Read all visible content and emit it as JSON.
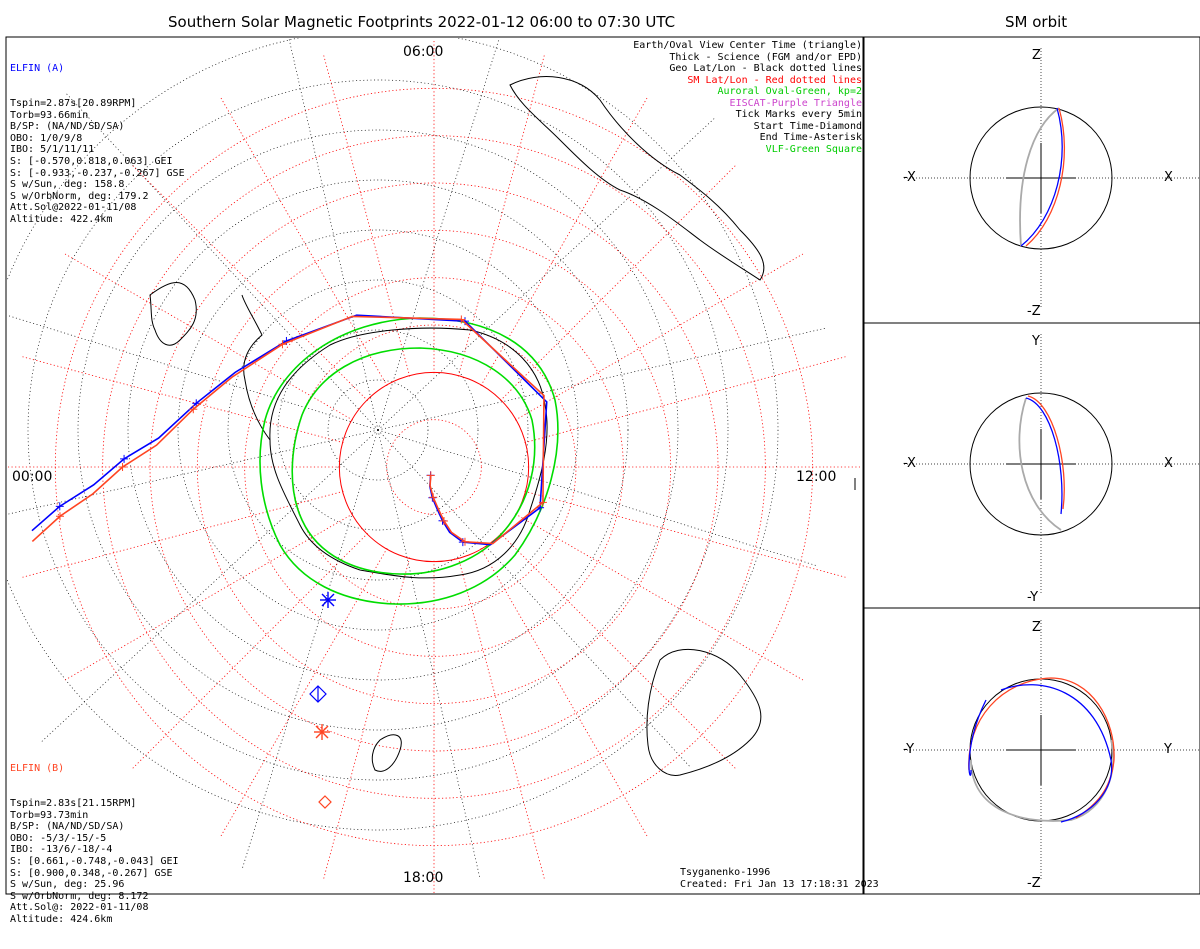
{
  "title": "Southern Solar Magnetic Footprints 2022-01-12 06:00 to 07:30 UTC",
  "orbit_title": "SM orbit",
  "colors": {
    "elfin_a": "#0000ff",
    "elfin_b": "#ff4422",
    "geo": "#000000",
    "sm": "#ff0000",
    "oval": "#00dd00",
    "eiscat": "#cc44cc",
    "vlf": "#00cc00",
    "orbit_gray": "#aaaaaa"
  },
  "hour_labels": {
    "top": "06:00",
    "left": "00:00",
    "right": "12:00",
    "bottom": "18:00"
  },
  "elfin_a": {
    "name": "ELFIN (A)",
    "lines": [
      "Tspin=2.87s[20.89RPM]",
      "Torb=93.66min",
      "B/SP: (NA/ND/SD/SA)",
      "OBO: 1/0/9/8",
      "IBO: 5/1/11/11",
      "S: [-0.570,0.818,0.063] GEI",
      "S: [-0.933,-0.237,-0.267] GSE",
      "S w/Sun, deg: 158.8",
      "S w/OrbNorm, deg: 179.2",
      "Att.Sol@2022-01-11/08",
      "Altitude: 422.4km"
    ]
  },
  "elfin_b": {
    "name": "ELFIN (B)",
    "lines": [
      "Tspin=2.83s[21.15RPM]",
      "Torb=93.73min",
      "B/SP: (NA/ND/SD/SA)",
      "OBO: -5/3/-15/-5",
      "IBO: -13/6/-18/-4",
      "S: [0.661,-0.748,-0.043] GEI",
      "S: [0.900,0.348,-0.267] GSE",
      "S w/Sun, deg: 25.96",
      "S w/OrbNorm, deg: 8.172",
      "Att.Sol@: 2022-01-11/08",
      "Altitude: 424.6km"
    ]
  },
  "legend": [
    {
      "text": "Earth/Oval View Center Time (triangle)",
      "color": "#000000"
    },
    {
      "text": "Thick - Science (FGM and/or EPD)",
      "color": "#000000"
    },
    {
      "text": "Geo Lat/Lon - Black dotted lines",
      "color": "#000000"
    },
    {
      "text": "SM Lat/Lon - Red dotted lines",
      "color": "#ff0000"
    },
    {
      "text": "Auroral Oval-Green, kp=2",
      "color": "#00cc00"
    },
    {
      "text": "EISCAT-Purple Triangle",
      "color": "#cc44cc"
    },
    {
      "text": "Tick Marks every 5min",
      "color": "#000000"
    },
    {
      "text": "Start Time-Diamond",
      "color": "#000000"
    },
    {
      "text": "End Time-Asterisk",
      "color": "#000000"
    },
    {
      "text": "VLF-Green Square",
      "color": "#00cc00"
    }
  ],
  "footer": {
    "model": "Tsyganenko-1996",
    "created": "Created: Fri Jan 13 17:18:31 2023"
  },
  "panels": [
    {
      "top": "Z",
      "bottom": "-Z",
      "left": "-X",
      "right": "X"
    },
    {
      "top": "Y",
      "bottom": "-Y",
      "left": "-X",
      "right": "X"
    },
    {
      "top": "Z",
      "bottom": "-Z",
      "left": "-Y",
      "right": "Y"
    }
  ],
  "chart_data": {
    "type": "polar-footprint",
    "projection": "southern hemisphere, SM magnetic local time",
    "rings_deg": [
      10,
      20,
      30,
      40,
      50,
      60,
      70,
      80
    ],
    "oval_kp": 2,
    "tracks": [
      {
        "name": "ELFIN (A)",
        "color": "#0000ff",
        "points": [
          [
            1.9,
            4.5
          ],
          [
            4.2,
            5.2
          ],
          [
            6.5,
            5.8
          ],
          [
            9.0,
            6.3
          ],
          [
            11.5,
            6.6
          ],
          [
            14.2,
            6.9
          ],
          [
            17.0,
            7.4
          ],
          [
            20.3,
            8.4
          ],
          [
            24.0,
            10.6
          ],
          [
            27.5,
            14.0
          ],
          [
            31.5,
            17.2
          ],
          [
            36.0,
            19.8
          ],
          [
            41.0,
            21.3
          ],
          [
            46.5,
            22.3
          ],
          [
            52.0,
            23.0
          ],
          [
            58.5,
            23.6
          ],
          [
            65.5,
            23.9
          ],
          [
            72.0,
            24.2
          ],
          [
            79.5,
            24.4
          ],
          [
            86.0,
            24.6
          ]
        ]
      },
      {
        "name": "ELFIN (B)",
        "color": "#ff4422",
        "points": [
          [
            1.9,
            4.6
          ],
          [
            4.0,
            5.2
          ],
          [
            6.4,
            5.9
          ],
          [
            9.0,
            6.4
          ],
          [
            11.6,
            6.7
          ],
          [
            14.3,
            7.0
          ],
          [
            17.1,
            7.5
          ],
          [
            20.4,
            8.5
          ],
          [
            24.2,
            10.8
          ],
          [
            27.7,
            14.2
          ],
          [
            31.7,
            17.3
          ],
          [
            36.2,
            19.9
          ],
          [
            41.2,
            21.4
          ],
          [
            46.7,
            22.4
          ],
          [
            52.3,
            23.1
          ],
          [
            58.8,
            23.7
          ],
          [
            65.8,
            24.0
          ],
          [
            72.3,
            24.3
          ],
          [
            79.7,
            24.5
          ],
          [
            86.3,
            24.7
          ]
        ]
      }
    ]
  }
}
